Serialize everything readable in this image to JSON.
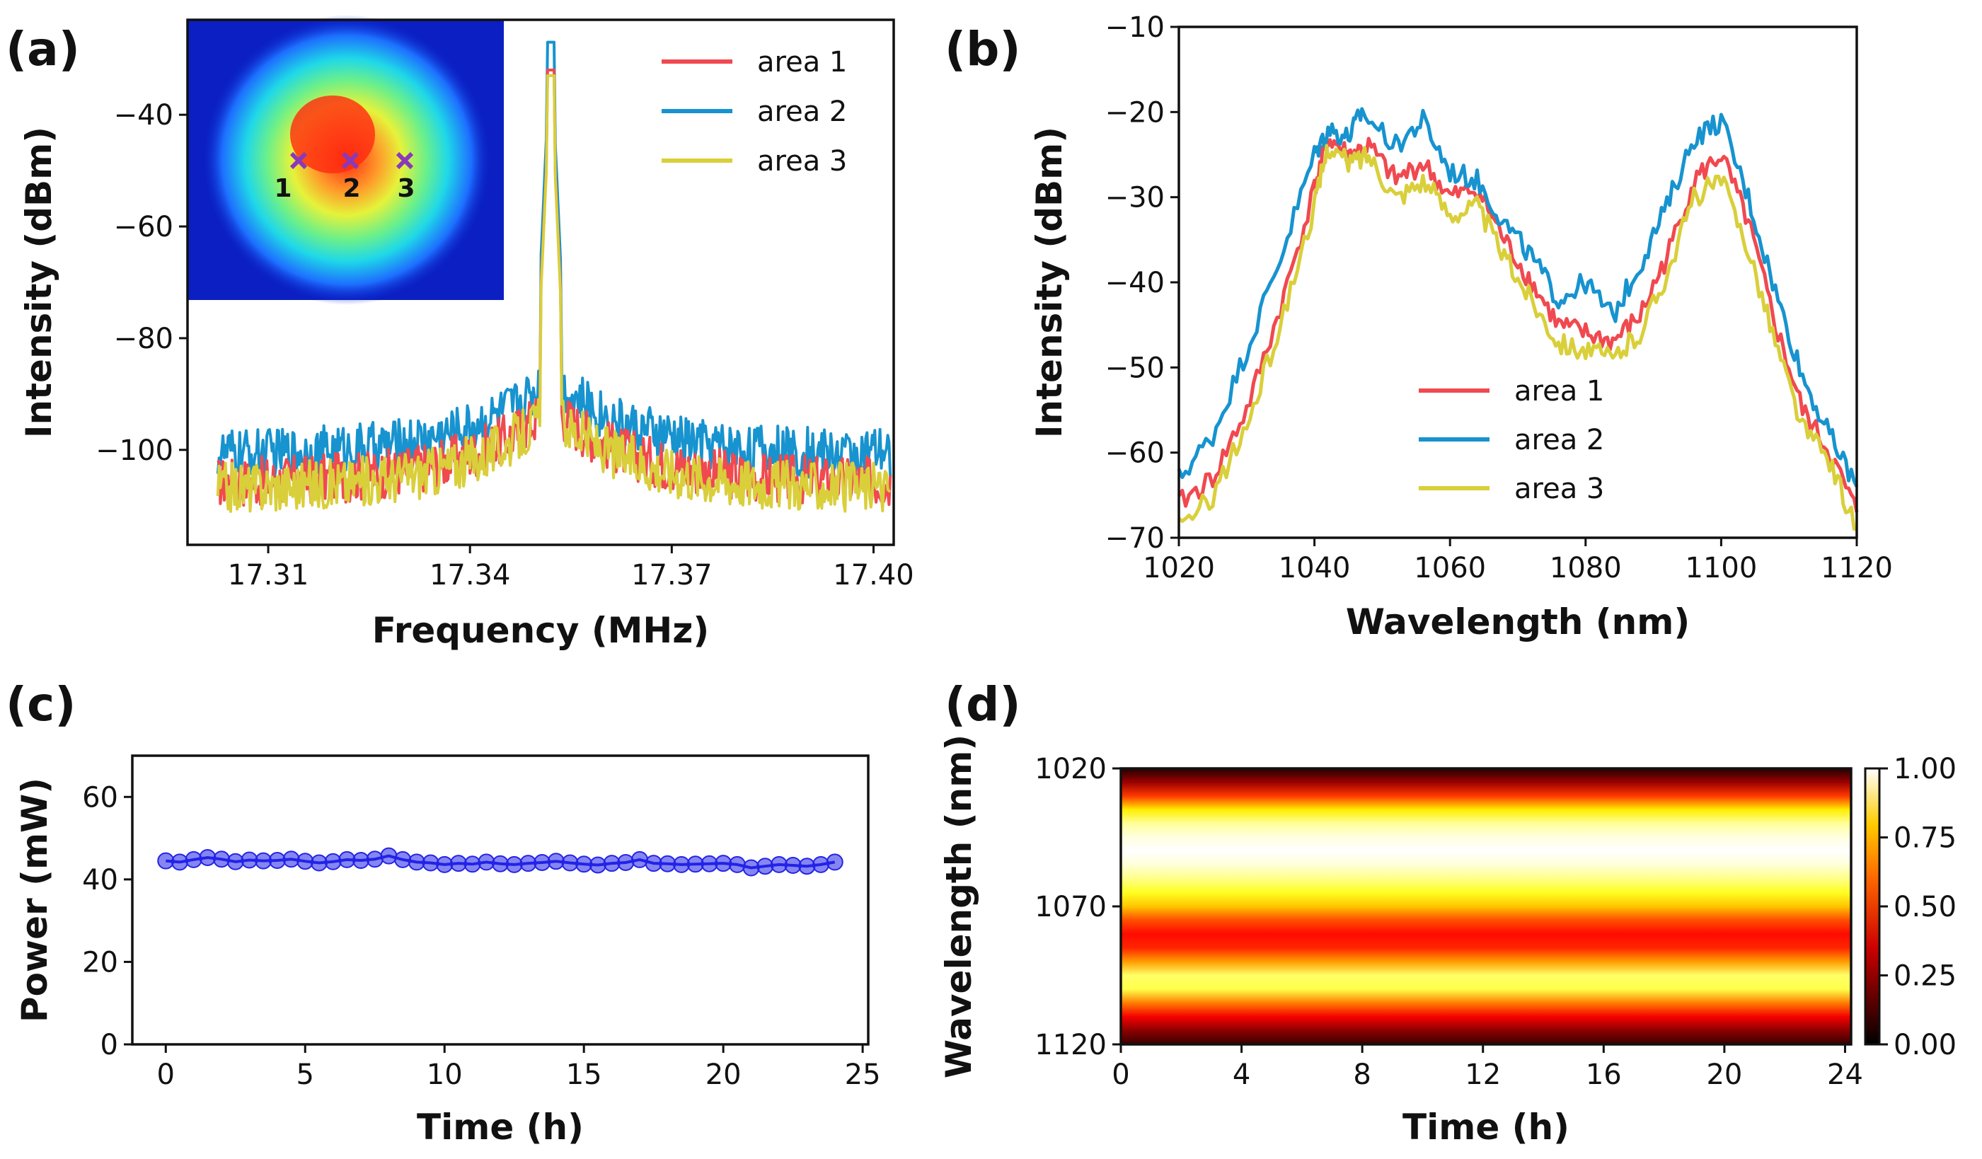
{
  "figure": {
    "panel_labels": [
      "(a)",
      "(b)",
      "(c)",
      "(d)"
    ]
  },
  "chart_data": [
    {
      "panel": "(a)",
      "type": "line",
      "xlabel": "Frequency (MHz)",
      "ylabel": "Intensity (dBm)",
      "xlim": [
        17.298,
        17.403
      ],
      "ylim": [
        -117,
        -23
      ],
      "xticks": [
        17.31,
        17.34,
        17.37,
        17.4
      ],
      "xtick_labels": [
        "17.31",
        "17.34",
        "17.37",
        "17.40"
      ],
      "yticks": [
        -100,
        -80,
        -60,
        -40
      ],
      "ytick_labels": [
        "−100",
        "−80",
        "−60",
        "−40"
      ],
      "x_range": [
        17.3025,
        17.4025
      ],
      "peak_x": 17.352,
      "legend_position": "top-right",
      "series": [
        {
          "name": "area 1",
          "color": "#f0494f",
          "noise_floor_dBm": -106,
          "peak_dBm": -32
        },
        {
          "name": "area 2",
          "color": "#1793cf",
          "noise_floor_dBm": -101,
          "peak_dBm": -27
        },
        {
          "name": "area 3",
          "color": "#d9cf3a",
          "noise_floor_dBm": -107,
          "peak_dBm": -33
        }
      ],
      "inset": {
        "description": "beam profile",
        "markers": [
          {
            "label": "1",
            "color": "#8a3ab9"
          },
          {
            "label": "2",
            "color": "#8a3ab9"
          },
          {
            "label": "3",
            "color": "#8a3ab9"
          }
        ]
      }
    },
    {
      "panel": "(b)",
      "type": "line",
      "xlabel": "Wavelength (nm)",
      "ylabel": "Intensity (dBm)",
      "xlim": [
        1020,
        1120
      ],
      "ylim": [
        -70,
        -10
      ],
      "xticks": [
        1020,
        1040,
        1060,
        1080,
        1100,
        1120
      ],
      "xtick_labels": [
        "1020",
        "1040",
        "1060",
        "1080",
        "1100",
        "1120"
      ],
      "yticks": [
        -70,
        -60,
        -50,
        -40,
        -30,
        -20,
        -10
      ],
      "ytick_labels": [
        "−70",
        "−60",
        "−50",
        "−40",
        "−30",
        "−20",
        "−10"
      ],
      "legend_position": "lower-center",
      "series": [
        {
          "name": "area 1",
          "color": "#f0494f",
          "x": [
            1020,
            1025,
            1030,
            1035,
            1040,
            1042,
            1045,
            1048,
            1052,
            1056,
            1060,
            1064,
            1068,
            1072,
            1076,
            1080,
            1084,
            1088,
            1092,
            1096,
            1100,
            1104,
            1108,
            1112,
            1116,
            1120
          ],
          "y": [
            -66,
            -63,
            -55,
            -43,
            -29,
            -23,
            -25,
            -24,
            -28,
            -26,
            -30,
            -29,
            -35,
            -40,
            -45,
            -46,
            -47,
            -44,
            -37,
            -28,
            -25,
            -33,
            -45,
            -55,
            -60,
            -67
          ]
        },
        {
          "name": "area 2",
          "color": "#1793cf",
          "x": [
            1020,
            1025,
            1030,
            1035,
            1040,
            1042,
            1045,
            1047,
            1052,
            1056,
            1060,
            1064,
            1068,
            1072,
            1076,
            1080,
            1084,
            1088,
            1092,
            1096,
            1100,
            1104,
            1108,
            1112,
            1116,
            1120
          ],
          "y": [
            -63,
            -58,
            -48,
            -37,
            -25,
            -22,
            -23,
            -20,
            -24,
            -21,
            -27,
            -28,
            -33,
            -37,
            -42,
            -40,
            -44,
            -38,
            -31,
            -23,
            -21,
            -30,
            -41,
            -51,
            -58,
            -64
          ]
        },
        {
          "name": "area 3",
          "color": "#d9cf3a",
          "x": [
            1020,
            1025,
            1030,
            1035,
            1040,
            1042,
            1045,
            1048,
            1052,
            1056,
            1060,
            1064,
            1068,
            1072,
            1076,
            1080,
            1084,
            1088,
            1092,
            1096,
            1100,
            1104,
            1108,
            1112,
            1116,
            1120
          ],
          "y": [
            -69,
            -65,
            -57,
            -45,
            -31,
            -24,
            -26,
            -25,
            -30,
            -28,
            -32,
            -31,
            -37,
            -42,
            -47,
            -48,
            -49,
            -46,
            -39,
            -30,
            -28,
            -36,
            -47,
            -57,
            -61,
            -69
          ]
        }
      ]
    },
    {
      "panel": "(c)",
      "type": "scatter",
      "xlabel": "Time (h)",
      "ylabel": "Power (mW)",
      "xlim": [
        -1.2,
        25.2
      ],
      "ylim": [
        0,
        70
      ],
      "xticks": [
        0,
        5,
        10,
        15,
        20,
        25
      ],
      "xtick_labels": [
        "0",
        "5",
        "10",
        "15",
        "20",
        "25"
      ],
      "yticks": [
        0,
        20,
        40,
        60
      ],
      "ytick_labels": [
        "0",
        "20",
        "40",
        "60"
      ],
      "marker_color": "#2323e8",
      "x": [
        0,
        0.5,
        1,
        1.5,
        2,
        2.5,
        3,
        3.5,
        4,
        4.5,
        5,
        5.5,
        6,
        6.5,
        7,
        7.5,
        8,
        8.5,
        9,
        9.5,
        10,
        10.5,
        11,
        11.5,
        12,
        12.5,
        13,
        13.5,
        14,
        14.5,
        15,
        15.5,
        16,
        16.5,
        17,
        17.5,
        18,
        18.5,
        19,
        19.5,
        20,
        20.5,
        21,
        21.5,
        22,
        22.5,
        23,
        23.5,
        24
      ],
      "y": [
        44.5,
        44.2,
        44.8,
        45.3,
        44.9,
        44.3,
        44.7,
        44.5,
        44.6,
        44.9,
        44.4,
        44.0,
        44.3,
        44.8,
        44.6,
        44.9,
        45.7,
        44.8,
        44.2,
        44.0,
        43.6,
        43.9,
        43.7,
        44.2,
        43.8,
        43.6,
        43.9,
        44.1,
        44.4,
        44.0,
        43.7,
        43.5,
        43.9,
        44.1,
        44.8,
        43.9,
        43.8,
        43.6,
        43.7,
        43.8,
        43.9,
        43.6,
        42.8,
        43.2,
        43.6,
        43.4,
        43.2,
        43.6,
        44.2
      ]
    },
    {
      "panel": "(d)",
      "type": "heatmap",
      "xlabel": "Time (h)",
      "ylabel": "Wavelength (nm)",
      "xlim": [
        0,
        24.2
      ],
      "ylim": [
        1120,
        1020
      ],
      "xticks": [
        0,
        4,
        8,
        12,
        16,
        20,
        24
      ],
      "xtick_labels": [
        "0",
        "4",
        "8",
        "12",
        "16",
        "20",
        "24"
      ],
      "yticks": [
        1020,
        1070,
        1120
      ],
      "ytick_labels": [
        "1020",
        "1070",
        "1120"
      ],
      "colorbar": {
        "ticks": [
          1.0,
          0.75,
          0.5,
          0.25,
          0.0
        ],
        "labels": [
          "1.00",
          "0.75",
          "0.50",
          "0.25",
          "0.00"
        ],
        "colormap": "hot"
      },
      "profile_wavelength": [
        1020,
        1025,
        1030,
        1035,
        1040,
        1045,
        1050,
        1055,
        1060,
        1065,
        1070,
        1075,
        1080,
        1085,
        1090,
        1095,
        1100,
        1105,
        1110,
        1115,
        1120
      ],
      "profile_value": [
        0.05,
        0.22,
        0.45,
        0.72,
        0.9,
        0.97,
        1.0,
        0.96,
        0.88,
        0.78,
        0.66,
        0.48,
        0.38,
        0.42,
        0.6,
        0.85,
        0.82,
        0.55,
        0.35,
        0.2,
        0.08
      ]
    }
  ]
}
